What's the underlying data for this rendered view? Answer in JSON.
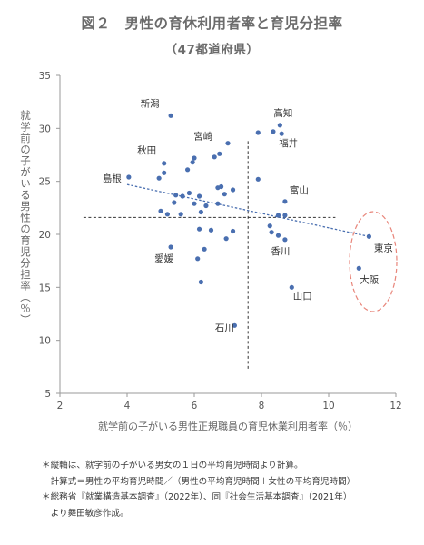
{
  "figure": {
    "title": "図２　男性の育休利用者率と育児分担率",
    "subtitle": "（47都道府県）"
  },
  "notes": [
    "＊縦軸は、就学前の子がいる男女の１日の平均育児時間より計算。",
    "　計算式＝男性の平均育児時間／（男性の平均育児時間＋女性の平均育児時間）",
    "＊総務省『就業構造基本調査』（2022年）、同『社会生活基本調査』（2021年）",
    "　より舞田敏彦作成。"
  ],
  "colors": {
    "point": "#4a6fb0",
    "trendline": "#4a6fb0",
    "axis": "#9a9a9a",
    "guide": "#333333",
    "ellipse": "#e8857a",
    "title": "#6b6b6b"
  },
  "chart_data": {
    "type": "scatter",
    "title": "男性の育休利用者率と育児分担率",
    "xlabel": "就学前の子がいる男性正規職員の育児休業利用者率（％）",
    "ylabel": "就学前の子がいる男性の育児分担率（％）",
    "xlim": [
      2,
      12
    ],
    "ylim": [
      5,
      35
    ],
    "xticks": [
      2,
      4,
      6,
      8,
      10,
      12
    ],
    "yticks": [
      5,
      10,
      15,
      20,
      25,
      30,
      35
    ],
    "grid": false,
    "reference_lines": {
      "x_mean": 7.6,
      "y_mean": 21.6
    },
    "trendline": {
      "x": [
        4.0,
        11.2
      ],
      "y": [
        24.7,
        19.8
      ]
    },
    "highlight_ellipse": {
      "label_targets": [
        "東京",
        "大阪"
      ]
    },
    "labeled_points": [
      {
        "name": "新潟",
        "x": 5.3,
        "y": 31.2
      },
      {
        "name": "高知",
        "x": 8.55,
        "y": 30.3
      },
      {
        "name": "宮崎",
        "x": 6.75,
        "y": 27.6
      },
      {
        "name": "福井",
        "x": 8.6,
        "y": 29.5
      },
      {
        "name": "秋田",
        "x": 5.1,
        "y": 26.7
      },
      {
        "name": "島根",
        "x": 4.05,
        "y": 25.4
      },
      {
        "name": "富山",
        "x": 8.7,
        "y": 23.1
      },
      {
        "name": "香川",
        "x": 8.7,
        "y": 19.5
      },
      {
        "name": "東京",
        "x": 11.2,
        "y": 19.8
      },
      {
        "name": "愛媛",
        "x": 5.3,
        "y": 18.8
      },
      {
        "name": "大阪",
        "x": 10.9,
        "y": 16.8
      },
      {
        "name": "山口",
        "x": 8.9,
        "y": 15.0
      },
      {
        "name": "石川",
        "x": 7.2,
        "y": 11.4
      }
    ],
    "other_points": [
      {
        "x": 5.8,
        "y": 26.1
      },
      {
        "x": 5.95,
        "y": 26.8
      },
      {
        "x": 6.0,
        "y": 27.2
      },
      {
        "x": 6.6,
        "y": 27.3
      },
      {
        "x": 7.0,
        "y": 28.6
      },
      {
        "x": 7.9,
        "y": 29.6
      },
      {
        "x": 8.35,
        "y": 29.7
      },
      {
        "x": 5.1,
        "y": 25.8
      },
      {
        "x": 4.95,
        "y": 25.3
      },
      {
        "x": 5.65,
        "y": 23.6
      },
      {
        "x": 5.45,
        "y": 23.7
      },
      {
        "x": 5.85,
        "y": 23.9
      },
      {
        "x": 6.15,
        "y": 23.6
      },
      {
        "x": 6.7,
        "y": 24.4
      },
      {
        "x": 6.8,
        "y": 24.5
      },
      {
        "x": 7.15,
        "y": 24.2
      },
      {
        "x": 6.9,
        "y": 23.8
      },
      {
        "x": 5.4,
        "y": 23.0
      },
      {
        "x": 6.0,
        "y": 22.9
      },
      {
        "x": 6.35,
        "y": 22.7
      },
      {
        "x": 6.7,
        "y": 22.9
      },
      {
        "x": 5.0,
        "y": 22.2
      },
      {
        "x": 5.2,
        "y": 21.9
      },
      {
        "x": 5.6,
        "y": 21.9
      },
      {
        "x": 6.2,
        "y": 22.1
      },
      {
        "x": 7.9,
        "y": 25.2
      },
      {
        "x": 8.5,
        "y": 21.8
      },
      {
        "x": 8.7,
        "y": 21.8
      },
      {
        "x": 8.25,
        "y": 20.8
      },
      {
        "x": 8.3,
        "y": 20.2
      },
      {
        "x": 8.5,
        "y": 19.9
      },
      {
        "x": 6.15,
        "y": 20.5
      },
      {
        "x": 6.5,
        "y": 20.4
      },
      {
        "x": 7.15,
        "y": 20.3
      },
      {
        "x": 6.95,
        "y": 19.6
      },
      {
        "x": 6.3,
        "y": 18.6
      },
      {
        "x": 6.1,
        "y": 17.7
      },
      {
        "x": 6.2,
        "y": 15.5
      }
    ]
  }
}
